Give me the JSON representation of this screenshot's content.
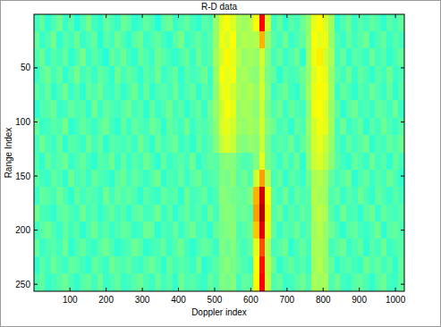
{
  "chart_data": {
    "type": "heatmap",
    "title": "R-D data",
    "x_label": "Doppler index",
    "y_label": "Range Index",
    "xlim": [
      0.5,
      1024.5
    ],
    "ylim": [
      256.5,
      0.5
    ],
    "xticks": [
      100,
      200,
      300,
      400,
      500,
      600,
      700,
      800,
      900,
      1000
    ],
    "yticks": [
      50,
      100,
      150,
      200,
      250
    ],
    "clim": [
      0,
      100
    ],
    "grid": false,
    "cells": [
      [
        44,
        47,
        42,
        45,
        48,
        43,
        46,
        41,
        45,
        49,
        44,
        42,
        47,
        45,
        43,
        48,
        46,
        42,
        44,
        47,
        45,
        41,
        46,
        48,
        43,
        45,
        47,
        44,
        42,
        46,
        45,
        52,
        60,
        62,
        59,
        54,
        53,
        55,
        62,
        88,
        58,
        43,
        47,
        42,
        46,
        44,
        48,
        52,
        60,
        63,
        59,
        53,
        42,
        45,
        48,
        43,
        46,
        44,
        47,
        45,
        42,
        46,
        44,
        47
      ],
      [
        47,
        43,
        45,
        49,
        42,
        46,
        44,
        48,
        43,
        45,
        47,
        41,
        46,
        44,
        48,
        45,
        42,
        46,
        48,
        43,
        45,
        47,
        44,
        42,
        46,
        49,
        43,
        45,
        47,
        44,
        46,
        52,
        61,
        59,
        62,
        53,
        55,
        54,
        55,
        70,
        52,
        46,
        44,
        48,
        43,
        45,
        47,
        52,
        62,
        60,
        61,
        52,
        45,
        43,
        47,
        44,
        46,
        48,
        42,
        45,
        47,
        43,
        46,
        44
      ],
      [
        45,
        48,
        43,
        46,
        44,
        47,
        42,
        45,
        49,
        43,
        46,
        44,
        41,
        47,
        45,
        48,
        44,
        42,
        47,
        45,
        43,
        48,
        46,
        44,
        42,
        45,
        47,
        43,
        48,
        44,
        46,
        53,
        59,
        63,
        60,
        55,
        52,
        54,
        52,
        58,
        50,
        44,
        47,
        43,
        45,
        48,
        42,
        53,
        61,
        64,
        58,
        54,
        44,
        47,
        42,
        46,
        45,
        43,
        48,
        44,
        46,
        42,
        45,
        47
      ],
      [
        43,
        46,
        48,
        44,
        47,
        42,
        45,
        49,
        44,
        46,
        43,
        47,
        45,
        42,
        48,
        44,
        47,
        45,
        42,
        46,
        44,
        48,
        43,
        45,
        47,
        42,
        46,
        44,
        45,
        48,
        43,
        52,
        62,
        60,
        61,
        53,
        54,
        52,
        51,
        57,
        49,
        47,
        42,
        46,
        44,
        45,
        48,
        52,
        59,
        62,
        60,
        52,
        46,
        44,
        48,
        43,
        47,
        45,
        42,
        46,
        44,
        48,
        43,
        45
      ],
      [
        46,
        44,
        47,
        42,
        45,
        48,
        43,
        46,
        42,
        47,
        45,
        48,
        44,
        43,
        46,
        42,
        45,
        48,
        43,
        47,
        42,
        45,
        46,
        44,
        48,
        43,
        45,
        47,
        42,
        46,
        44,
        51,
        60,
        61,
        58,
        54,
        53,
        55,
        52,
        58,
        50,
        43,
        46,
        48,
        44,
        42,
        47,
        53,
        60,
        63,
        61,
        53,
        43,
        47,
        45,
        42,
        46,
        44,
        48,
        45,
        43,
        47,
        42,
        46
      ],
      [
        42,
        45,
        46,
        48,
        43,
        44,
        47,
        45,
        46,
        42,
        48,
        43,
        47,
        45,
        44,
        46,
        48,
        44,
        46,
        42,
        47,
        43,
        45,
        48,
        44,
        46,
        42,
        45,
        47,
        43,
        48,
        52,
        58,
        62,
        60,
        52,
        54,
        53,
        51,
        57,
        49,
        45,
        48,
        43,
        47,
        45,
        44,
        51,
        61,
        62,
        59,
        52,
        47,
        42,
        46,
        48,
        44,
        45,
        43,
        47,
        46,
        44,
        48,
        43
      ],
      [
        47,
        43,
        44,
        46,
        45,
        49,
        42,
        44,
        47,
        45,
        43,
        46,
        48,
        44,
        42,
        47,
        43,
        47,
        45,
        44,
        48,
        46,
        42,
        47,
        45,
        44,
        48,
        43,
        46,
        45,
        47,
        51,
        59,
        60,
        58,
        53,
        52,
        54,
        52,
        58,
        50,
        48,
        44,
        46,
        42,
        47,
        45,
        52,
        58,
        61,
        60,
        53,
        44,
        48,
        43,
        45,
        47,
        42,
        46,
        44,
        48,
        45,
        43,
        46
      ],
      [
        44,
        48,
        45,
        43,
        47,
        42,
        46,
        45,
        43,
        48,
        44,
        47,
        42,
        46,
        45,
        44,
        46,
        43,
        48,
        45,
        42,
        47,
        44,
        46,
        48,
        43,
        45,
        42,
        47,
        44,
        46,
        50,
        57,
        59,
        57,
        51,
        50,
        52,
        51,
        57,
        49,
        44,
        46,
        45,
        48,
        43,
        47,
        51,
        58,
        60,
        57,
        52,
        45,
        43,
        47,
        44,
        46,
        48,
        42,
        45,
        44,
        47,
        45,
        48
      ],
      [
        45,
        42,
        47,
        44,
        46,
        48,
        43,
        45,
        47,
        44,
        42,
        46,
        45,
        48,
        43,
        47,
        43,
        46,
        44,
        48,
        45,
        42,
        47,
        43,
        45,
        46,
        44,
        48,
        42,
        45,
        47,
        46,
        50,
        51,
        50,
        47,
        45,
        46,
        50,
        60,
        49,
        46,
        43,
        47,
        44,
        48,
        42,
        51,
        57,
        59,
        56,
        51,
        46,
        44,
        42,
        47,
        45,
        43,
        48,
        44,
        46,
        42,
        47,
        44
      ],
      [
        46,
        44,
        43,
        47,
        45,
        42,
        48,
        44,
        46,
        43,
        47,
        45,
        44,
        42,
        46,
        48,
        44,
        47,
        45,
        43,
        46,
        48,
        42,
        45,
        44,
        47,
        43,
        46,
        48,
        44,
        45,
        46,
        50,
        49,
        51,
        46,
        48,
        45,
        58,
        72,
        55,
        44,
        47,
        42,
        46,
        45,
        43,
        48,
        54,
        55,
        53,
        47,
        44,
        46,
        48,
        42,
        45,
        47,
        43,
        46,
        44,
        48,
        45,
        42
      ],
      [
        43,
        47,
        46,
        44,
        48,
        45,
        42,
        47,
        44,
        46,
        45,
        43,
        48,
        44,
        47,
        45,
        47,
        45,
        42,
        46,
        44,
        43,
        47,
        45,
        46,
        42,
        48,
        44,
        45,
        47,
        43,
        45,
        51,
        50,
        49,
        48,
        47,
        50,
        70,
        92,
        62,
        46,
        44,
        48,
        43,
        47,
        45,
        46,
        55,
        54,
        53,
        45,
        47,
        43,
        46,
        44,
        48,
        45,
        42,
        47,
        45,
        43,
        46,
        44
      ],
      [
        48,
        45,
        44,
        42,
        46,
        47,
        45,
        43,
        48,
        44,
        46,
        42,
        45,
        47,
        44,
        46,
        42,
        46,
        47,
        44,
        45,
        48,
        43,
        46,
        42,
        45,
        47,
        44,
        46,
        43,
        48,
        44,
        50,
        51,
        50,
        47,
        48,
        46,
        72,
        95,
        64,
        45,
        48,
        43,
        46,
        44,
        47,
        45,
        54,
        56,
        54,
        46,
        43,
        48,
        44,
        45,
        42,
        46,
        48,
        43,
        47,
        45,
        44,
        46
      ],
      [
        44,
        46,
        48,
        45,
        43,
        47,
        44,
        46,
        42,
        45,
        48,
        44,
        46,
        43,
        45,
        47,
        46,
        43,
        44,
        48,
        47,
        42,
        45,
        44,
        47,
        43,
        46,
        48,
        44,
        45,
        42,
        47,
        49,
        50,
        51,
        45,
        46,
        48,
        68,
        90,
        60,
        47,
        43,
        46,
        45,
        48,
        44,
        46,
        53,
        55,
        52,
        48,
        45,
        42,
        46,
        47,
        44,
        43,
        45,
        48,
        42,
        46,
        47,
        45
      ],
      [
        47,
        43,
        45,
        46,
        44,
        48,
        42,
        45,
        47,
        44,
        43,
        46,
        48,
        45,
        42,
        44,
        45,
        48,
        46,
        42,
        44,
        45,
        47,
        43,
        46,
        48,
        44,
        42,
        45,
        47,
        46,
        43,
        50,
        48,
        50,
        46,
        44,
        47,
        60,
        80,
        55,
        44,
        46,
        48,
        42,
        45,
        47,
        44,
        54,
        54,
        53,
        44,
        46,
        48,
        43,
        45,
        47,
        42,
        46,
        44,
        48,
        43,
        45,
        46
      ],
      [
        42,
        46,
        44,
        48,
        45,
        43,
        47,
        46,
        44,
        42,
        47,
        45,
        43,
        48,
        46,
        45,
        47,
        44,
        43,
        46,
        48,
        45,
        42,
        47,
        44,
        46,
        45,
        43,
        48,
        42,
        44,
        46,
        49,
        51,
        49,
        47,
        45,
        43,
        62,
        86,
        56,
        48,
        42,
        45,
        47,
        44,
        46,
        43,
        53,
        55,
        52,
        47,
        42,
        45,
        46,
        44,
        43,
        48,
        45,
        47,
        44,
        46,
        42,
        47
      ],
      [
        45,
        47,
        43,
        44,
        46,
        48,
        45,
        42,
        46,
        47,
        44,
        48,
        43,
        45,
        47,
        43,
        44,
        46,
        48,
        45,
        43,
        47,
        44,
        46,
        42,
        48,
        45,
        46,
        44,
        43,
        47,
        45,
        50,
        49,
        50,
        44,
        47,
        46,
        63,
        88,
        57,
        45,
        47,
        43,
        44,
        46,
        48,
        45,
        54,
        53,
        54,
        45,
        48,
        44,
        43,
        46,
        47,
        45,
        42,
        46,
        48,
        44,
        43,
        47
      ]
    ]
  }
}
